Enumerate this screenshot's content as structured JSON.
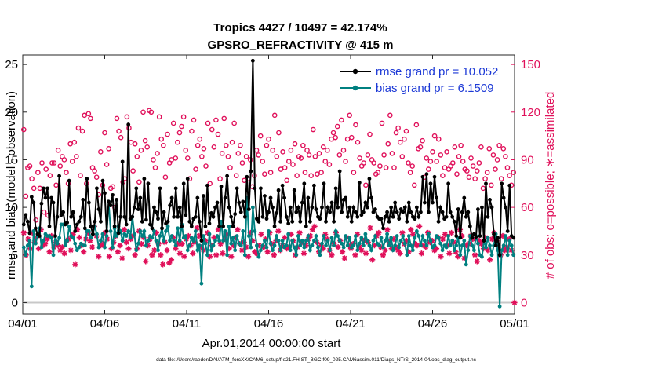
{
  "chart_data": {
    "type": "line",
    "title": "Tropics 4427 / 10497 = 42.174%",
    "subtitle": "GPSRO_REFRACTIVITY @ 415 m",
    "xlabel": "Apr.01,2014 00:00:00 start",
    "ylabel_left": "rmse and bias (model - observation)",
    "ylabel_right": "# of obs: o=possible; ∗=assimilated",
    "footnote": "data file: /Users/raeder/DAI/ATM_forcXX/CAM6_setup/f.e21.FHIST_BGC.f09_025.CAM6assim.011/Diags_NTrS_2014-04/obs_diag_output.nc",
    "xlim": [
      0,
      30
    ],
    "ylim_left": [
      -1.2,
      26
    ],
    "ylim_right": [
      -7.2,
      156
    ],
    "x_tick_values": [
      0,
      5,
      10,
      15,
      20,
      25,
      30
    ],
    "x_tick_labels": [
      "04/01",
      "04/06",
      "04/11",
      "04/16",
      "04/21",
      "04/26",
      "05/01"
    ],
    "left_ticks": [
      0,
      5,
      10,
      15,
      20,
      25
    ],
    "right_ticks": [
      0,
      30,
      60,
      90,
      120,
      150
    ],
    "series": [
      {
        "name": "rmse grand pr = 10.052",
        "axis": "left",
        "color": "#000000",
        "marker": "filled-circle",
        "values": [
          8.2,
          9.2,
          8.5,
          7.3,
          11.1,
          10.5,
          7.8,
          7.2,
          7.0,
          10.4,
          12.0,
          11.0,
          12.0,
          8.0,
          11.0,
          10.5,
          7.0,
          9.0,
          13.3,
          9.2,
          9.5,
          8.2,
          8.4,
          12.8,
          9.0,
          9.5,
          7.5,
          8.2,
          8.5,
          9.0,
          10.8,
          7.8,
          13.0,
          10.5,
          8.0,
          7.2,
          8.5,
          12.0,
          9.8,
          8.5,
          12.8,
          11.5,
          7.5,
          10.6,
          10.2,
          11.3,
          8.0,
          10.8,
          7.3,
          9.0,
          14.8,
          9.0,
          8.2,
          18.7,
          8.8,
          9.0,
          10.0,
          12.0,
          9.8,
          11.0,
          8.5,
          13.0,
          8.7,
          12.5,
          8.2,
          7.8,
          10.0,
          9.5,
          8.8,
          12.0,
          7.8,
          9.5,
          8.3,
          8.5,
          10.2,
          11.0,
          9.0,
          12.0,
          9.0,
          10.0,
          8.0,
          12.5,
          9.2,
          13.0,
          8.5,
          8.0,
          8.8,
          9.0,
          11.0,
          8.5,
          6.5,
          11.2,
          8.0,
          12.3,
          8.3,
          9.4,
          9.0,
          10.0,
          10.5,
          8.0,
          12.2,
          8.0,
          11.0,
          13.3,
          10.0,
          9.0,
          8.0,
          9.3,
          12.0,
          10.5,
          9.5,
          10.6,
          9.0,
          13.2,
          9.8,
          13.8,
          25.4,
          12.0,
          8.8,
          8.5,
          12.0,
          9.0,
          11.2,
          8.8,
          9.5,
          11.0,
          10.0,
          8.0,
          9.4,
          11.8,
          8.5,
          12.3,
          11.0,
          9.0,
          8.3,
          10.0,
          8.5,
          11.8,
          9.5,
          10.0,
          8.5,
          10.5,
          12.5,
          8.0,
          11.0,
          8.5,
          10.0,
          12.3,
          9.8,
          9.0,
          8.8,
          10.0,
          12.5,
          8.5,
          10.0,
          9.5,
          10.5,
          8.5,
          12.0,
          10.0,
          13.8,
          9.5,
          10.8,
          11.0,
          9.0,
          10.0,
          8.5,
          10.0,
          9.5,
          9.0,
          12.6,
          9.2,
          9.5,
          10.5,
          10.0,
          13.0,
          11.0,
          9.5,
          9.8,
          9.0,
          8.8,
          8.8,
          7.8,
          9.0,
          9.5,
          8.5,
          10.0,
          9.0,
          10.5,
          9.5,
          8.8,
          9.8,
          9.5,
          10.0,
          8.5,
          10.5,
          9.5,
          9.0,
          8.8,
          10.0,
          9.0,
          9.5,
          13.2,
          10.5,
          13.5,
          9.5,
          12.5,
          10.5,
          13.2,
          11.0,
          8.5,
          10.0,
          9.5,
          8.8,
          9.0,
          12.5,
          9.5,
          9.0,
          8.5,
          7.0,
          9.8,
          6.8,
          9.5,
          11.0,
          9.0,
          9.5,
          8.0,
          6.8,
          7.2,
          6.9,
          9.8,
          7.0,
          10.0,
          6.5,
          12.5,
          9.0,
          10.8,
          10.0,
          7.2,
          6.0,
          6.8,
          5.0,
          12.5,
          11.0,
          10.0,
          7.5,
          12.3,
          7.0,
          6.8
        ]
      },
      {
        "name": "bias grand pr = 6.1509",
        "axis": "left",
        "color": "#008080",
        "marker": "filled-circle",
        "values": [
          5.8,
          5.0,
          6.0,
          6.5,
          1.7,
          7.5,
          6.2,
          7.0,
          7.8,
          5.8,
          6.5,
          7.2,
          7.0,
          7.0,
          6.8,
          5.0,
          7.0,
          6.2,
          6.8,
          8.2,
          8.2,
          6.0,
          6.5,
          8.0,
          7.0,
          6.8,
          6.2,
          5.5,
          5.8,
          6.2,
          6.0,
          6.0,
          7.5,
          7.5,
          6.8,
          7.2,
          8.0,
          7.2,
          5.8,
          6.5,
          7.2,
          5.8,
          7.0,
          10.6,
          7.5,
          5.8,
          7.8,
          7.0,
          8.0,
          7.5,
          6.5,
          7.2,
          7.0,
          7.5,
          6.8,
          9.0,
          7.2,
          5.5,
          6.2,
          7.5,
          7.0,
          7.5,
          6.0,
          6.5,
          7.0,
          6.8,
          7.5,
          6.5,
          5.5,
          7.0,
          7.8,
          6.5,
          7.5,
          8.0,
          6.5,
          7.0,
          6.5,
          6.0,
          7.8,
          6.5,
          8.2,
          6.8,
          7.0,
          5.5,
          6.0,
          6.8,
          6.5,
          7.5,
          5.5,
          6.0,
          2.0,
          7.0,
          6.2,
          5.0,
          7.2,
          5.5,
          6.0,
          6.5,
          7.0,
          6.5,
          8.5,
          6.5,
          7.5,
          5.0,
          8.0,
          6.2,
          6.8,
          5.5,
          7.0,
          6.2,
          6.0,
          7.5,
          5.0,
          11.0,
          7.0,
          5.8,
          10.0,
          7.5,
          6.0,
          4.8,
          5.5,
          6.0,
          6.5,
          5.8,
          7.5,
          6.2,
          5.5,
          6.0,
          7.0,
          6.5,
          5.5,
          6.5,
          5.8,
          6.0,
          7.2,
          5.5,
          6.5,
          5.8,
          5.0,
          7.0,
          6.0,
          6.5,
          5.8,
          6.5,
          7.0,
          5.5,
          6.0,
          6.5,
          7.0,
          5.8,
          5.0,
          6.2,
          7.0,
          6.0,
          6.5,
          5.5,
          6.8,
          6.0,
          7.5,
          7.0,
          6.5,
          6.2,
          5.8,
          7.0,
          6.0,
          6.8,
          5.8,
          6.0,
          7.0,
          5.5,
          6.2,
          6.8,
          6.0,
          7.2,
          6.5,
          6.0,
          5.5,
          6.5,
          7.0,
          6.2,
          6.0,
          6.8,
          5.8,
          6.5,
          7.2,
          6.0,
          6.8,
          5.5,
          6.0,
          7.0,
          5.8,
          6.5,
          7.0,
          6.2,
          5.0,
          7.0,
          6.0,
          5.5,
          6.8,
          7.5,
          7.0,
          6.0,
          7.0,
          6.5,
          6.0,
          7.2,
          6.5,
          5.8,
          6.0,
          7.0,
          6.8,
          6.2,
          5.5,
          6.0,
          5.8,
          7.0,
          6.0,
          6.5,
          5.5,
          6.0,
          6.8,
          5.0,
          6.0,
          6.5,
          4.0,
          5.5,
          7.0,
          6.0,
          5.5,
          7.0,
          6.2,
          5.0,
          4.8,
          6.5,
          5.8,
          6.8,
          6.0,
          5.0,
          6.0,
          7.2,
          5.5,
          -0.4,
          5.5,
          6.0,
          7.0,
          5.0,
          6.5,
          6.0,
          5.0
        ]
      },
      {
        "name": "possible",
        "axis": "right",
        "color": "#e0105a",
        "marker": "open-circle",
        "values": [
          109,
          67,
          85,
          86,
          78,
          72,
          52,
          82,
          72,
          88,
          57,
          84,
          55,
          80,
          88,
          88,
          74,
          96,
          86,
          92,
          90,
          82,
          75,
          100,
          89,
          101,
          92,
          110,
          80,
          108,
          118,
          75,
          119,
          116,
          85,
          83,
          79,
          68,
          95,
          74,
          107,
          87,
          97,
          72,
          73,
          60,
          116,
          108,
          104,
          76,
          78,
          117,
          110,
          101,
          83,
          100,
          92,
          76,
          96,
          120,
          102,
          98,
          121,
          120,
          90,
          85,
          94,
          117,
          103,
          99,
          79,
          106,
          88,
          90,
          113,
          91,
          101,
          107,
          111,
          117,
          96,
          91,
          78,
          108,
          115,
          84,
          99,
          103,
          92,
          97,
          86,
          113,
          75,
          109,
          98,
          115,
          106,
          78,
          94,
          116,
          99,
          92,
          85,
          101,
          113,
          80,
          94,
          99,
          88,
          77,
          92,
          78,
          90,
          73,
          80,
          96,
          93,
          105,
          89,
          81,
          99,
          103,
          82,
          96,
          118,
          92,
          107,
          84,
          95,
          85,
          77,
          89,
          96,
          87,
          100,
          80,
          92,
          91,
          99,
          82,
          96,
          93,
          80,
          109,
          92,
          81,
          94,
          82,
          98,
          89,
          96,
          87,
          103,
          107,
          104,
          111,
          93,
          115,
          96,
          89,
          103,
          118,
          104,
          82,
          112,
          101,
          91,
          86,
          88,
          74,
          93,
          106,
          90,
          88,
          81,
          82,
          86,
          113,
          93,
          85,
          100,
          118,
          94,
          85,
          107,
          110,
          101,
          92,
          103,
          108,
          88,
          82,
          86,
          74,
          112,
          97,
          98,
          102,
          79,
          91,
          84,
          89,
          95,
          105,
          89,
          103,
          93,
          80,
          85,
          95,
          84,
          86,
          88,
          98,
          81,
          92,
          99,
          89,
          84,
          83,
          79,
          91,
          86,
          78,
          83,
          88,
          98,
          72,
          78,
          82,
          97,
          74,
          93,
          84,
          90,
          99,
          78,
          97,
          92,
          85,
          80,
          74,
          82
        ]
      },
      {
        "name": "assimilated",
        "axis": "right",
        "color": "#e0105a",
        "marker": "asterisk",
        "values": [
          44,
          30,
          40,
          34,
          44,
          38,
          41,
          34,
          46,
          36,
          37,
          40,
          32,
          42,
          35,
          38,
          36,
          33,
          35,
          31,
          39,
          40,
          33,
          43,
          24,
          46,
          41,
          36,
          32,
          40,
          44,
          39,
          35,
          48,
          42,
          29,
          36,
          37,
          44,
          40,
          29,
          34,
          38,
          42,
          32,
          36,
          28,
          46,
          38,
          34,
          40,
          42,
          30,
          34,
          45,
          37,
          41,
          26,
          36,
          40,
          30,
          33,
          44,
          37,
          30,
          24,
          38,
          33,
          25,
          27,
          41,
          34,
          37,
          31,
          37,
          29,
          40,
          42,
          36,
          31,
          38,
          47,
          42,
          35,
          33,
          39,
          44,
          29,
          36,
          41,
          30,
          46,
          37,
          31,
          40,
          43,
          34,
          29,
          36,
          41,
          46,
          37,
          33,
          38,
          35,
          29,
          44,
          39,
          32,
          31,
          36,
          43,
          35,
          40,
          32,
          44,
          37,
          30,
          39,
          45,
          33,
          36,
          41,
          34,
          35,
          43,
          39,
          30,
          35,
          44,
          38,
          31,
          36,
          40,
          42,
          46,
          48,
          38,
          32,
          36,
          34,
          43,
          40,
          33,
          30,
          37,
          44,
          35,
          39,
          32,
          28,
          41,
          36,
          34,
          37,
          30,
          43,
          35,
          33,
          39,
          31,
          38,
          47,
          27,
          36,
          42,
          44,
          35,
          30,
          33,
          46,
          38,
          34,
          40,
          35,
          33,
          31,
          44,
          37,
          39,
          32,
          46,
          43,
          37,
          36,
          48,
          31,
          36,
          35,
          44,
          38,
          39,
          33,
          34,
          41,
          29,
          40,
          43,
          36,
          31,
          44,
          38,
          32,
          29,
          46,
          42,
          28,
          36,
          37,
          42,
          40,
          30,
          26,
          39,
          37,
          34,
          41,
          33,
          27,
          40,
          44,
          39,
          35,
          30,
          42,
          33,
          35,
          40,
          33,
          0
        ]
      }
    ]
  }
}
